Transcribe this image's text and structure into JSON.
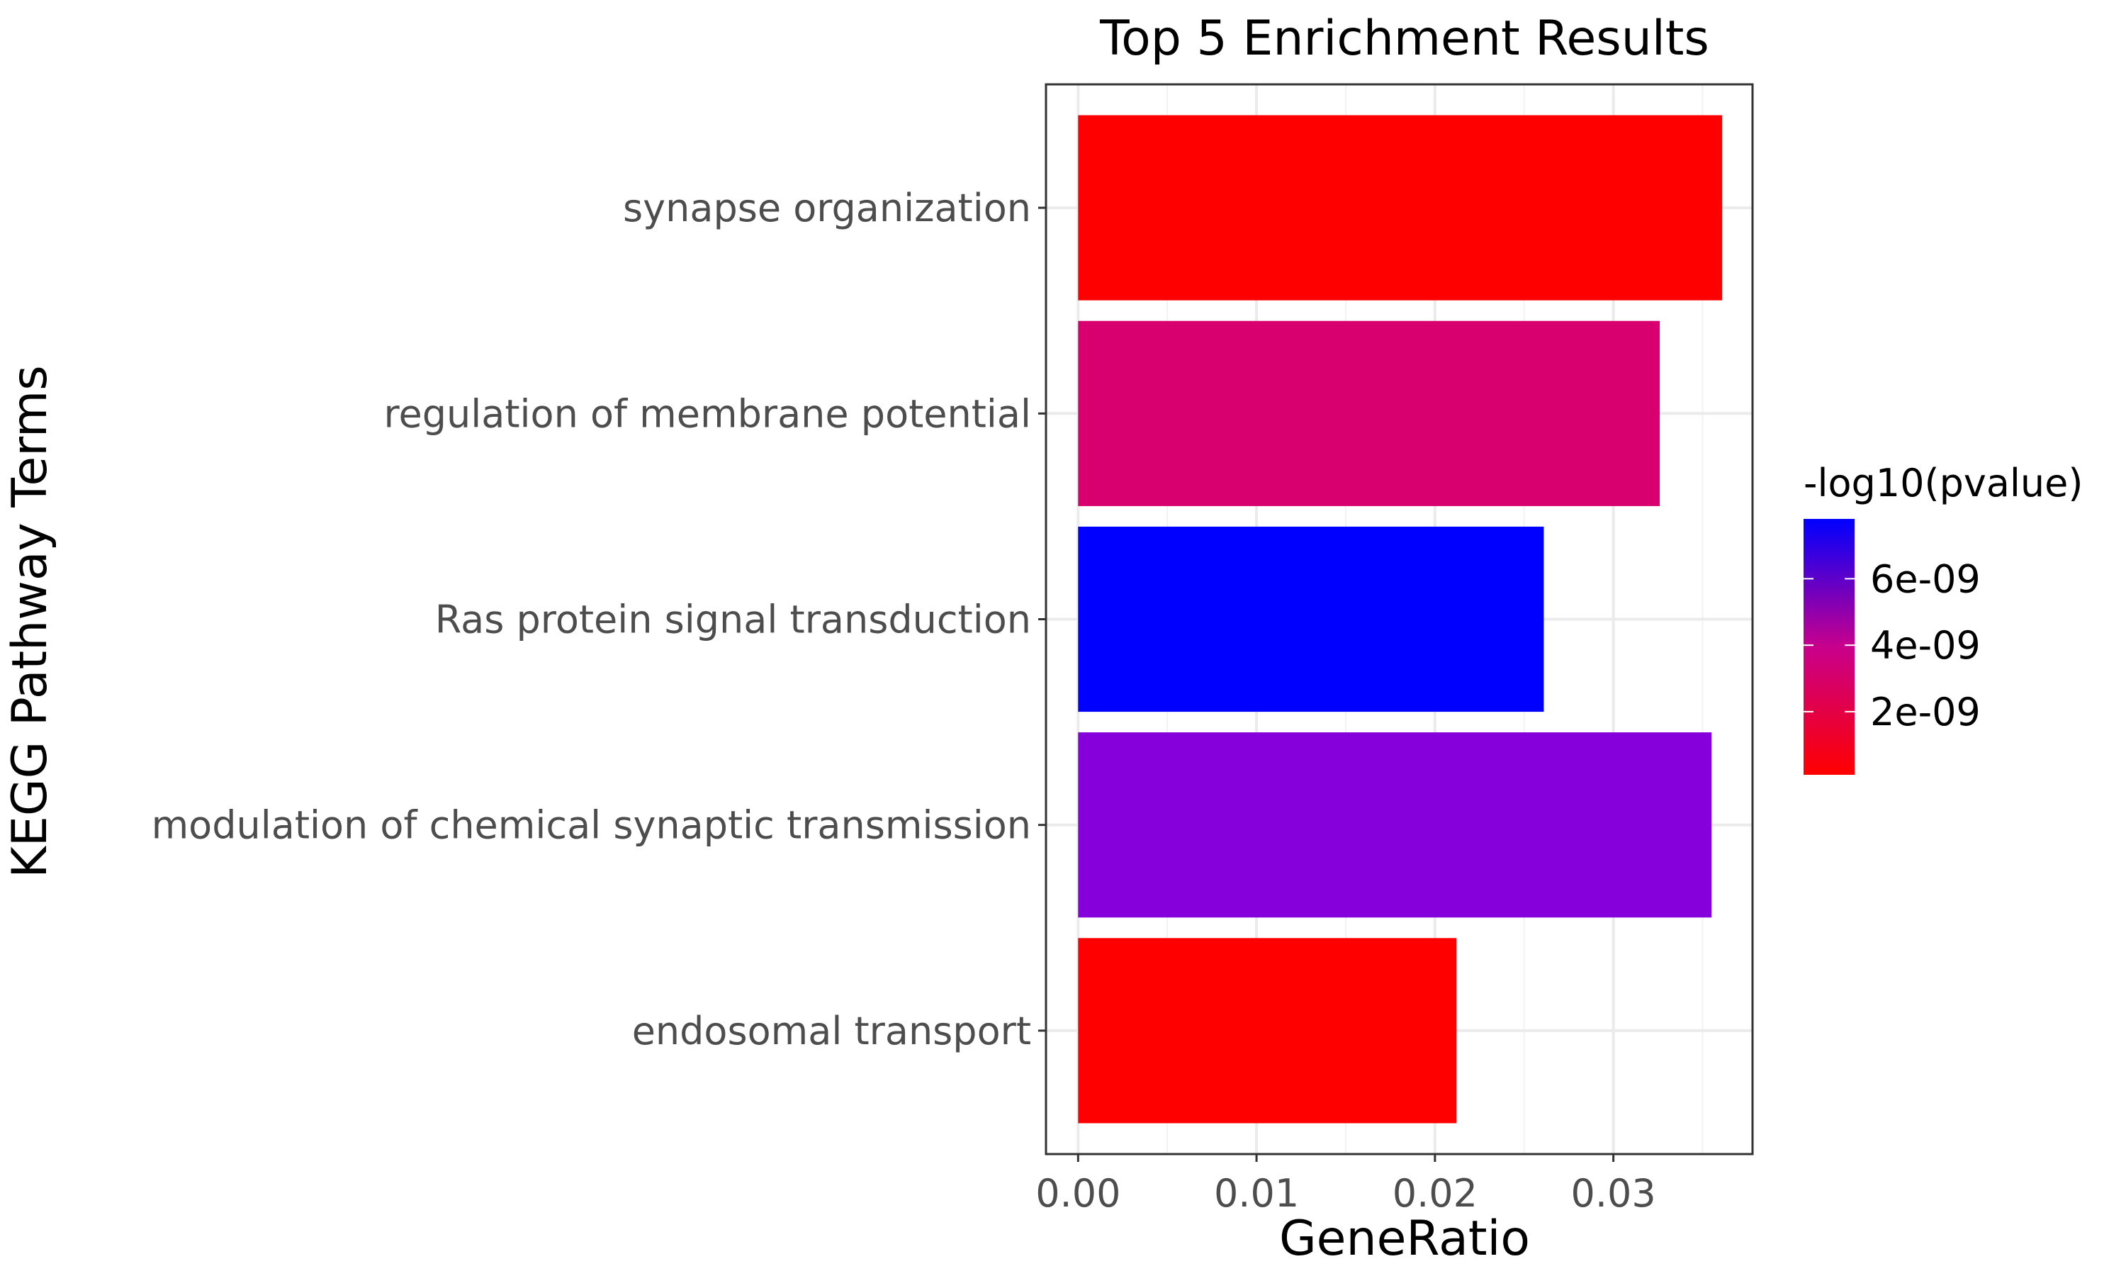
{
  "chart_data": {
    "type": "bar",
    "orientation": "horizontal",
    "title": "Top 5 Enrichment Results",
    "xlabel": "GeneRatio",
    "ylabel": "KEGG Pathway Terms",
    "categories": [
      "synapse organization",
      "regulation of membrane potential",
      "Ras protein signal transduction",
      "modulation of chemical synaptic transmission",
      "endosomal transport"
    ],
    "values": [
      0.0361,
      0.0326,
      0.0261,
      0.0355,
      0.0212
    ],
    "color_values": [
      3e-10,
      2.8e-09,
      7.5e-09,
      5.4e-09,
      2e-10
    ],
    "colors": [
      "#ff0000",
      "#d8006e",
      "#0000ff",
      "#8500db",
      "#ff0000"
    ],
    "xlim": [
      -0.0018,
      0.0378
    ],
    "xticks": [
      0.0,
      0.01,
      0.02,
      0.03
    ],
    "xtick_labels": [
      "0.00",
      "0.01",
      "0.02",
      "0.03"
    ],
    "grid": true,
    "legend": {
      "title": "-log10(pvalue)",
      "position": "right",
      "low_color": "#ff0000",
      "high_color": "#0000ff",
      "range": [
        1e-10,
        7.8e-09
      ],
      "ticks": [
        2e-09,
        4e-09,
        6e-09
      ],
      "tick_labels": [
        "2e-09",
        "4e-09",
        "6e-09"
      ]
    }
  }
}
